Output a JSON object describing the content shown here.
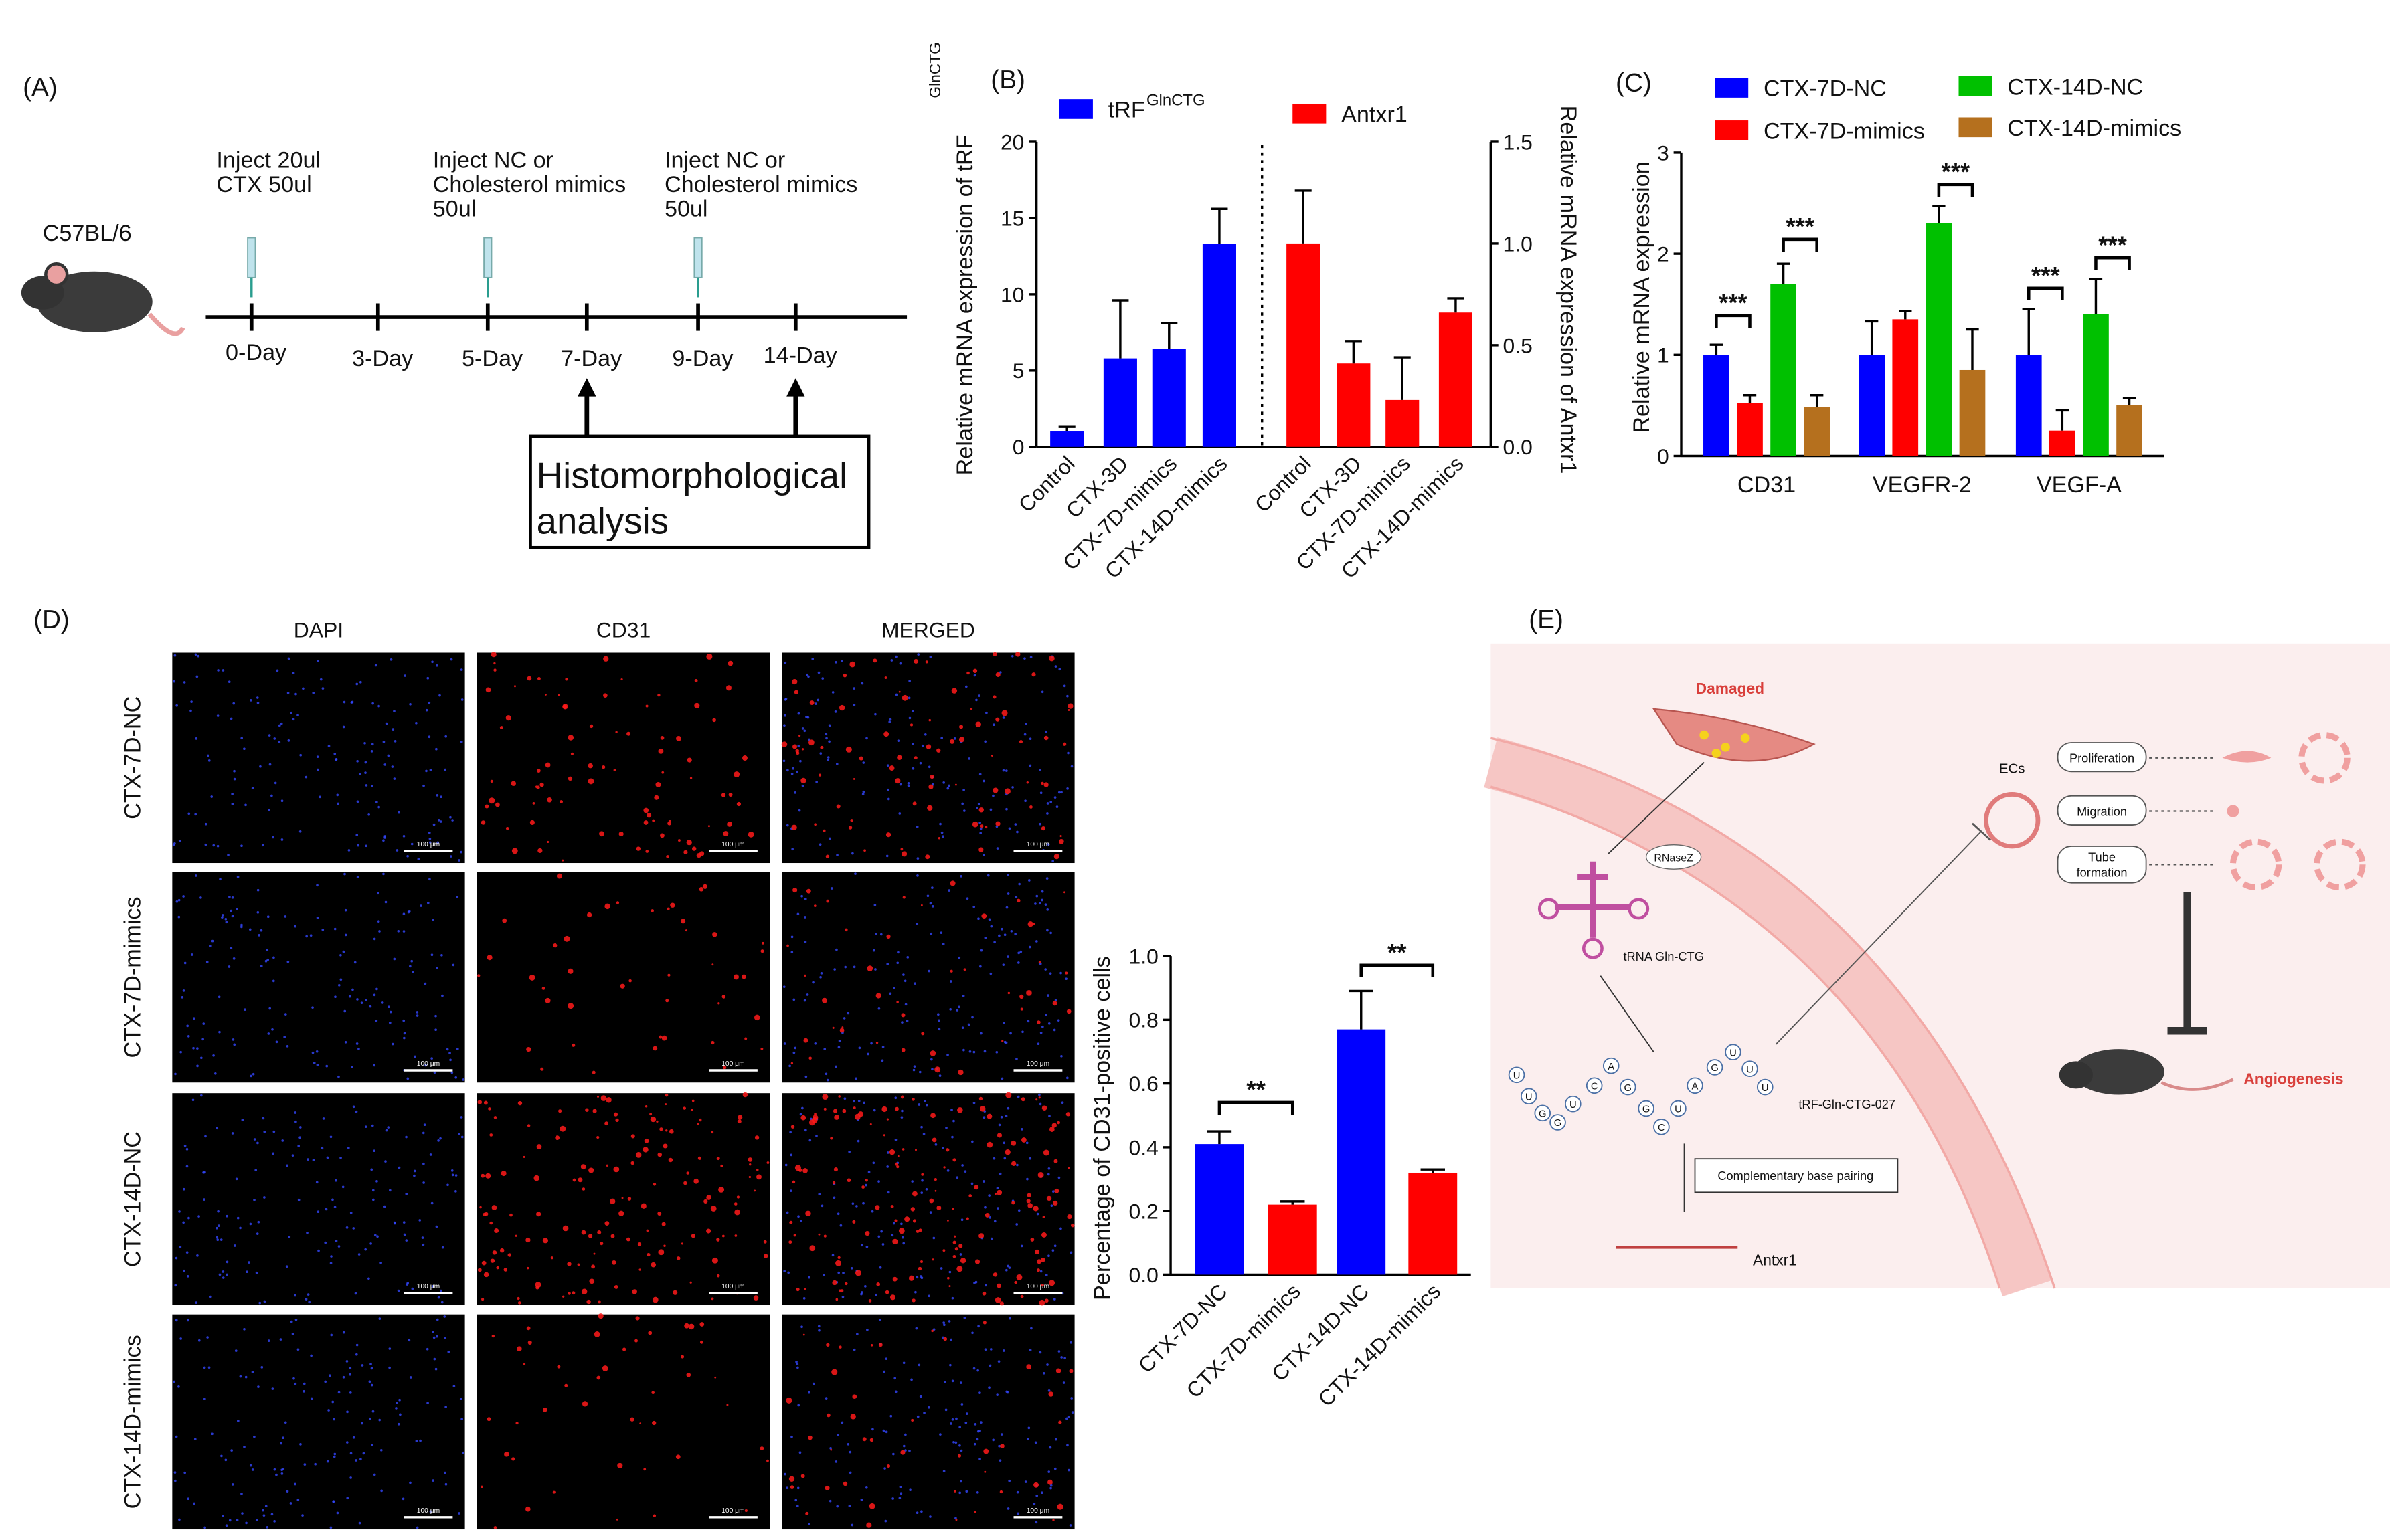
{
  "panel_a": {
    "label": "(A)",
    "strain": "C57BL/6",
    "injections": [
      [
        "Inject 20ul",
        "CTX 50ul"
      ],
      [
        "Inject NC or",
        "Cholesterol mimics",
        "50ul"
      ],
      [
        "Inject  NC or",
        "Cholesterol mimics",
        "50ul"
      ]
    ],
    "timeline": [
      "0-Day",
      "3-Day",
      "5-Day",
      "7-Day",
      "9-Day",
      "14-Day"
    ],
    "analysis": [
      "Histomorphological",
      "analysis"
    ]
  },
  "chart_data": [
    {
      "type": "bar",
      "panel_label": "(B)",
      "y_label": "Relative mRNA expression of tRF",
      "y_label_superscript": "GlnCTG",
      "y2_label": "Relative mRNA expression of Antxr1",
      "categories": [
        "Control",
        "CTX-3D",
        "CTX-7D-mimics",
        "CTX-14D-mimics",
        "Control",
        "CTX-3D",
        "CTX-7D-mimics",
        "CTX-14D-mimics"
      ],
      "series": [
        {
          "name": "tRF",
          "name_superscript": "GlnCTG",
          "color": "#0000ff",
          "values": [
            1.0,
            5.8,
            6.4,
            13.3,
            null,
            null,
            null,
            null
          ],
          "errors": [
            0.3,
            3.8,
            1.7,
            2.3,
            null,
            null,
            null,
            null
          ]
        },
        {
          "name": "Antxr1",
          "color": "#ff0000",
          "axis": "y2",
          "values": [
            null,
            null,
            null,
            null,
            1.0,
            0.41,
            0.23,
            0.66
          ],
          "errors": [
            null,
            null,
            null,
            null,
            0.26,
            0.11,
            0.21,
            0.07
          ]
        }
      ],
      "ylim": [
        0,
        20
      ],
      "yticks": [
        0,
        5,
        10,
        15,
        20
      ],
      "y2lim": [
        0,
        1.5
      ],
      "y2ticks": [
        {
          "value": 0,
          "label": "0.0"
        },
        0.5,
        {
          "value": 1,
          "label": "1.0"
        },
        1.5
      ]
    },
    {
      "type": "bar",
      "panel_label": "(C)",
      "y_label": "Relative mRNA expression",
      "categories": [
        "CD31",
        "VEGFR-2",
        "VEGF-A"
      ],
      "series": [
        {
          "name": "CTX-7D-NC",
          "color": "#0000ff",
          "values": [
            1.0,
            1.0,
            1.0
          ],
          "errors": [
            0.1,
            0.33,
            0.45
          ]
        },
        {
          "name": "CTX-7D-mimics",
          "color": "#ff0000",
          "values": [
            0.52,
            1.35,
            0.25
          ],
          "errors": [
            0.08,
            0.08,
            0.2
          ]
        },
        {
          "name": "CTX-14D-NC",
          "color": "#00c000",
          "values": [
            1.7,
            2.3,
            1.4
          ],
          "errors": [
            0.2,
            0.17,
            0.35
          ]
        },
        {
          "name": "CTX-14D-mimics",
          "color": "#b5701e",
          "values": [
            0.48,
            0.85,
            0.5
          ],
          "errors": [
            0.12,
            0.4,
            0.07
          ]
        }
      ],
      "ylim": [
        0,
        3
      ],
      "yticks": [
        0,
        1,
        2,
        3
      ],
      "annotations": [
        "***",
        "***",
        "***",
        "***",
        "***"
      ]
    },
    {
      "type": "bar",
      "y_label": "Percentage of CD31-positive cells",
      "categories": [
        "CTX-7D-NC",
        "CTX-7D-mimics",
        "CTX-14D-NC",
        "CTX-14D-mimics"
      ],
      "values": [
        0.41,
        0.22,
        0.77,
        0.32
      ],
      "errors": [
        0.04,
        0.01,
        0.12,
        0.01
      ],
      "colors": [
        "#0000ff",
        "#ff0000",
        "#0000ff",
        "#ff0000"
      ],
      "ylim": [
        0,
        1
      ],
      "yticks": [
        {
          "value": 0,
          "label": "0.0"
        },
        0.2,
        0.4,
        0.6,
        0.8,
        {
          "value": 1,
          "label": "1.0"
        }
      ],
      "annotations": [
        "**",
        "**"
      ]
    }
  ],
  "panel_d_images": {
    "label": "(D)",
    "columns": [
      "DAPI",
      "CD31",
      "MERGED"
    ],
    "rows": [
      "CTX-7D-NC",
      "CTX-7D-mimics",
      "CTX-14D-NC",
      "CTX-14D-mimics"
    ],
    "scale_bars": [
      "100 μm",
      "100 μm",
      "100 μm",
      "100 μm",
      "100 μm",
      "100 μm",
      "100 μm",
      "100 μm",
      "100 μm",
      "100 μm",
      "100 μm",
      "100 μm"
    ]
  },
  "panel_e": {
    "label": "(E)",
    "damaged": "Damaged",
    "enzyme": "RNaseZ",
    "trna": "tRNA Gln-CTG",
    "sequence": [
      "U",
      "U",
      "G",
      "G",
      "U",
      "C",
      "A",
      "G",
      "G",
      "C",
      "U",
      "A",
      "G",
      "U",
      "U",
      "U"
    ],
    "trf": "tRF-Gln-CTG-027",
    "pairing": "Complementary base pairing",
    "target": "Antxr1",
    "cells": "ECs",
    "processes": [
      "Proliferation",
      "Migration",
      "Tube",
      "formation"
    ],
    "outcome": "Angiogenesis"
  }
}
